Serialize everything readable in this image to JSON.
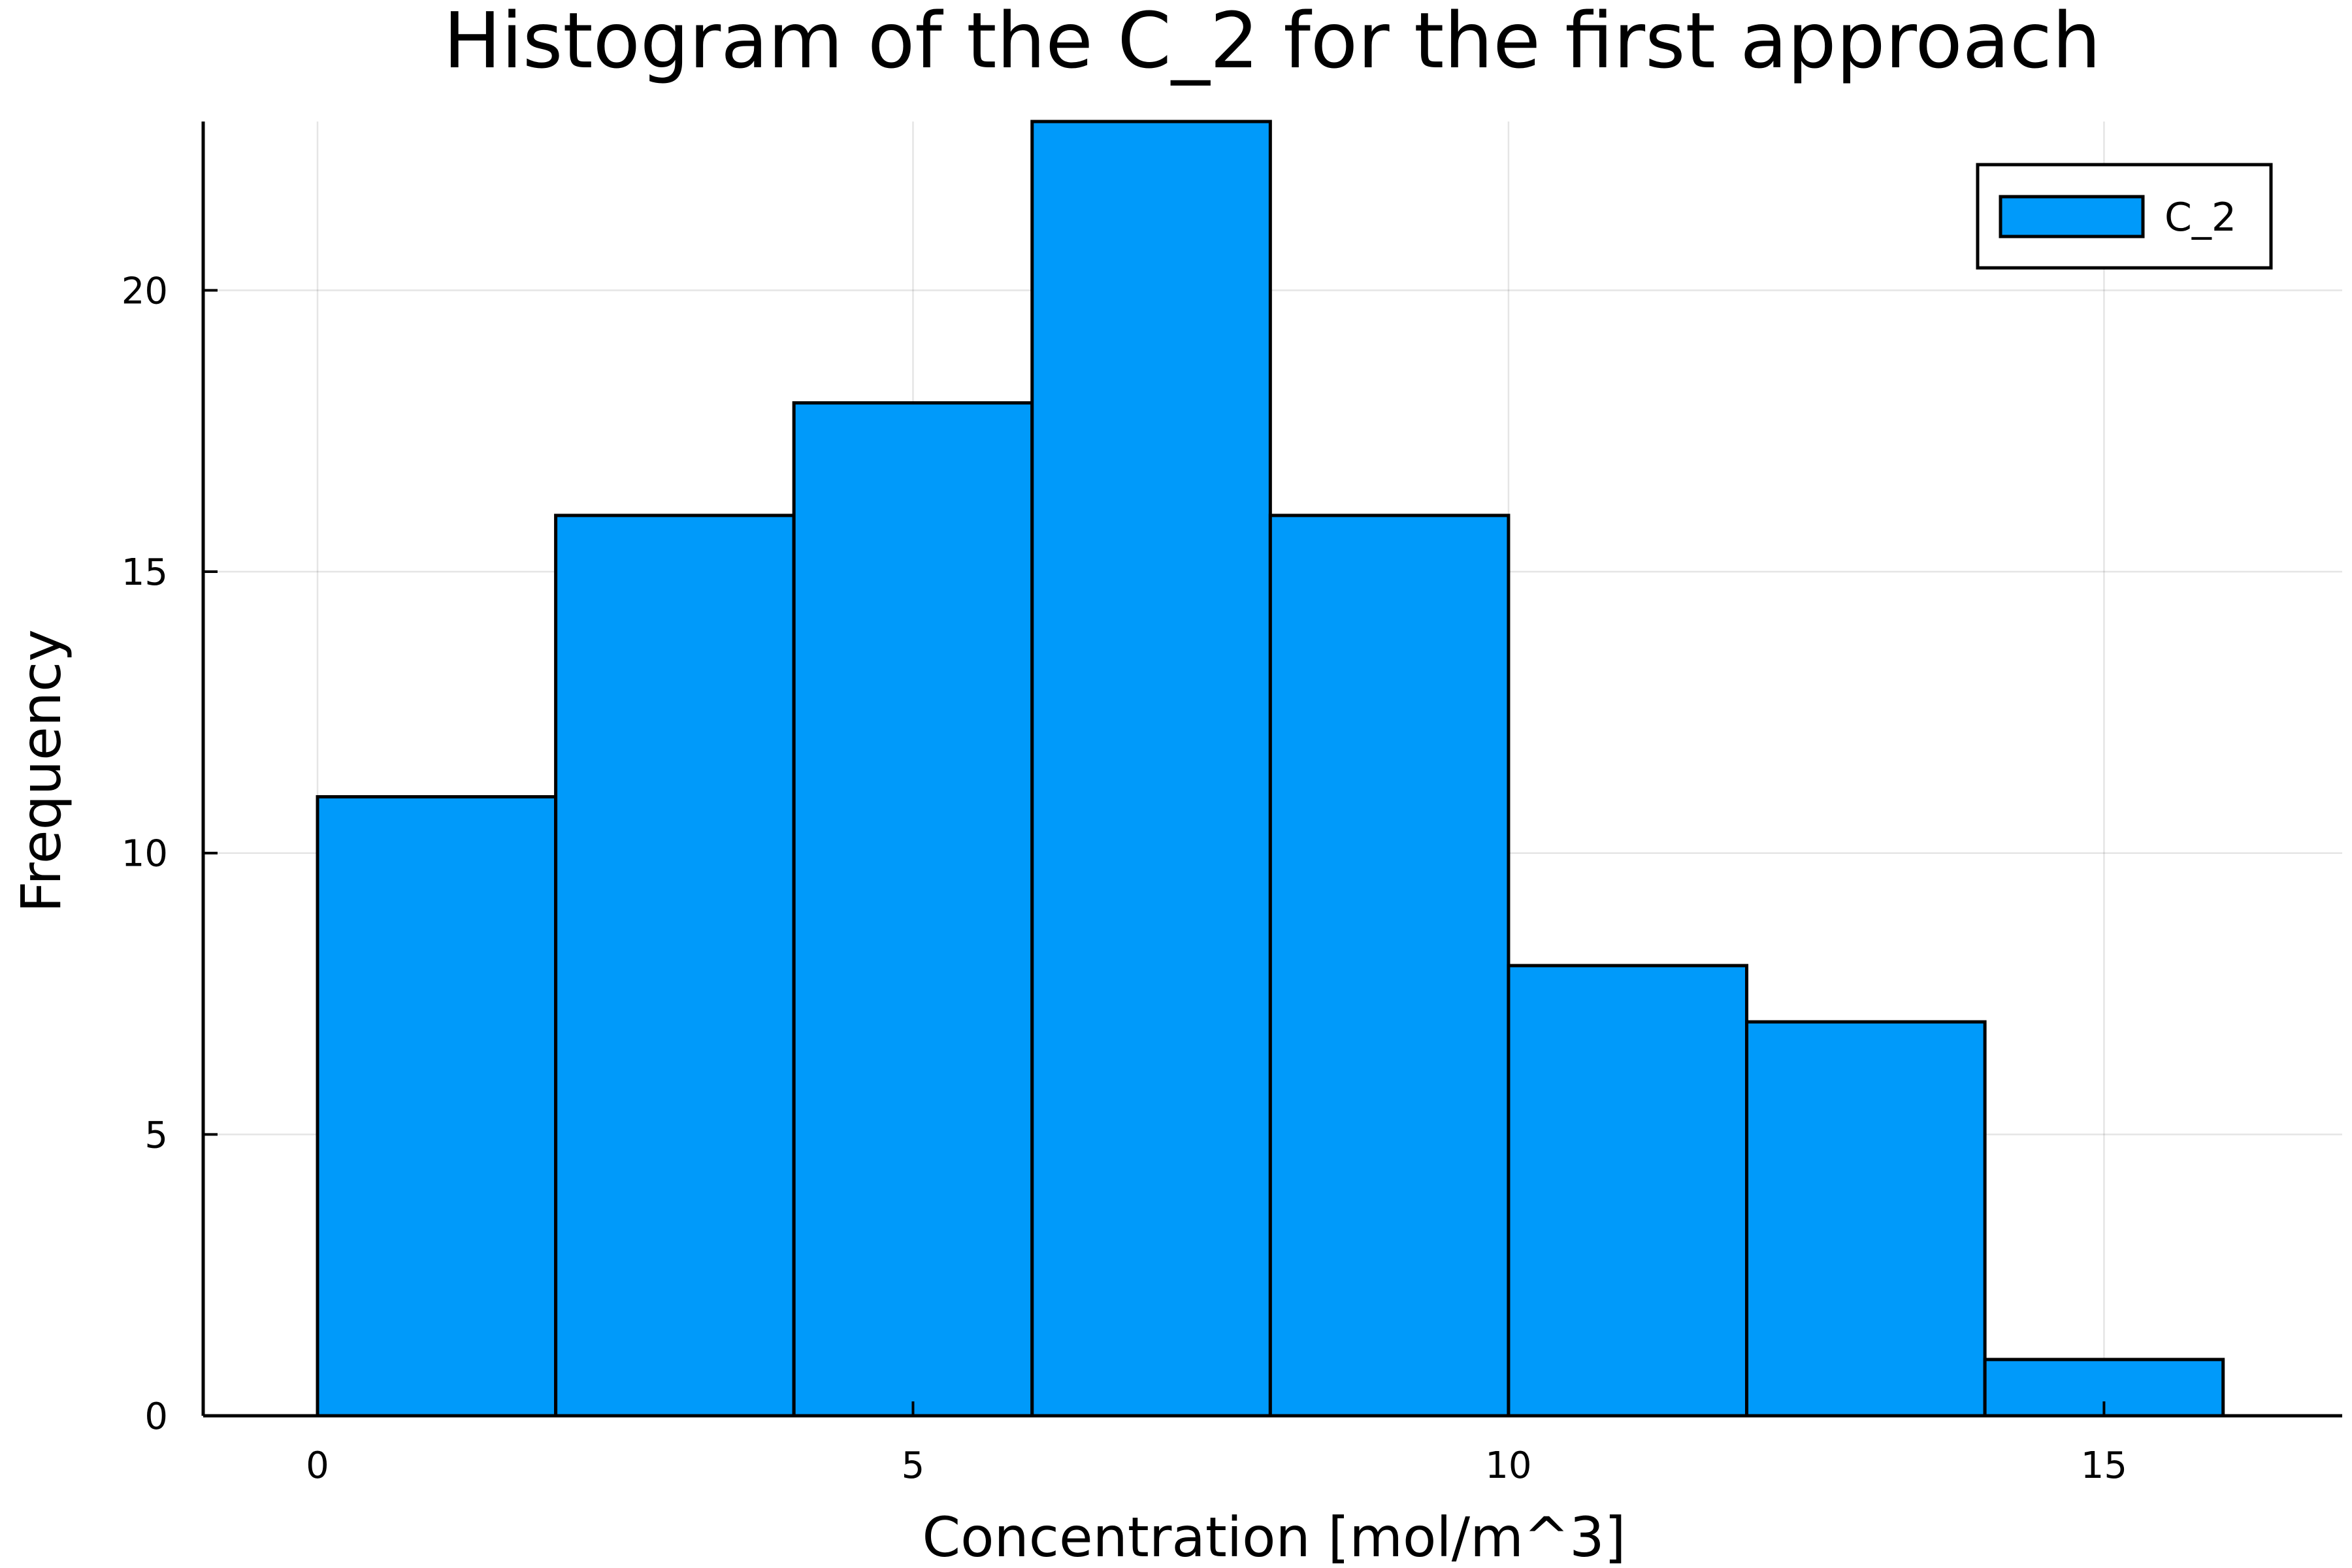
{
  "chart_data": {
    "type": "bar",
    "title": "Histogram of the C_2 for the first approach",
    "xlabel": "Concentration [mol/m^3]",
    "ylabel": "Frequency",
    "bins": [
      {
        "start": 0,
        "end": 2,
        "count": 11
      },
      {
        "start": 2,
        "end": 4,
        "count": 16
      },
      {
        "start": 4,
        "end": 6,
        "count": 18
      },
      {
        "start": 6,
        "end": 8,
        "count": 23
      },
      {
        "start": 8,
        "end": 10,
        "count": 16
      },
      {
        "start": 10,
        "end": 12,
        "count": 8
      },
      {
        "start": 12,
        "end": 14,
        "count": 7
      },
      {
        "start": 14,
        "end": 16,
        "count": 1
      }
    ],
    "xlim": [
      -0.96,
      17.0
    ],
    "ylim": [
      0,
      23
    ],
    "xticks": [
      0,
      5,
      10,
      15
    ],
    "xtick_labels": [
      "0",
      "5",
      "10",
      "15"
    ],
    "yticks": [
      0,
      5,
      10,
      15,
      20
    ],
    "ytick_labels": [
      "0",
      "5",
      "10",
      "15",
      "20"
    ],
    "grid": true,
    "legend_position": "top-right",
    "series": [
      {
        "name": "C_2",
        "color": "#009AFA"
      }
    ]
  }
}
